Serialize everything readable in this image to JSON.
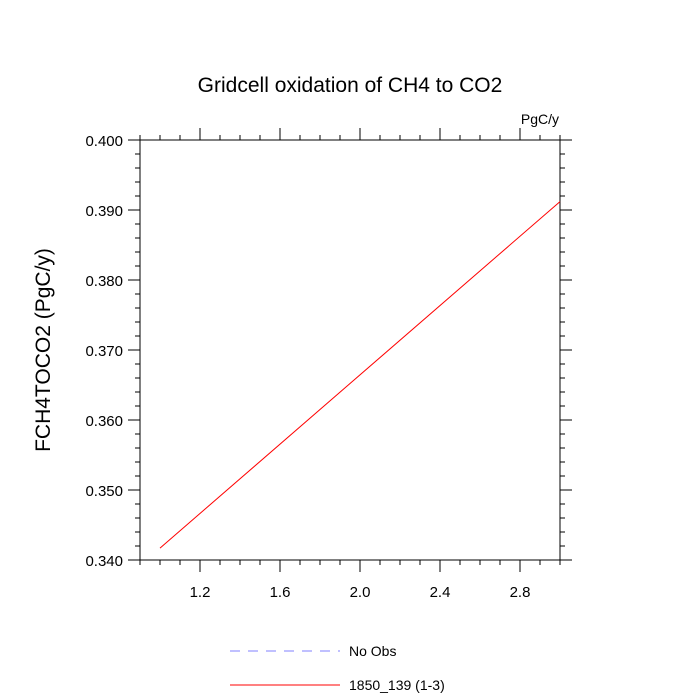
{
  "chart_data": {
    "type": "line",
    "title": "Gridcell oxidation of CH4 to CO2",
    "units": "PgC/y",
    "ylabel": "FCH4TOCO2  (PgC/y)",
    "xlabel": "",
    "xlim": [
      0.9,
      3.0
    ],
    "ylim": [
      0.34,
      0.4
    ],
    "xticks": [
      1.2,
      1.6,
      2.0,
      2.4,
      2.8
    ],
    "xtick_labels": [
      "1.2",
      "1.6",
      "2.0",
      "2.4",
      "2.8"
    ],
    "yticks": [
      0.34,
      0.35,
      0.36,
      0.37,
      0.38,
      0.39,
      0.4
    ],
    "ytick_labels": [
      "0.340",
      "0.350",
      "0.360",
      "0.370",
      "0.380",
      "0.390",
      "0.400"
    ],
    "grid": false,
    "legend_position": "bottom",
    "series": [
      {
        "name": "No Obs",
        "color": "#8080ff",
        "style": "dashed",
        "x": [],
        "y": []
      },
      {
        "name": "1850_139 (1-3)",
        "color": "#ff0000",
        "style": "solid",
        "x": [
          1.0,
          3.0
        ],
        "y": [
          0.3417,
          0.3912
        ]
      }
    ]
  }
}
